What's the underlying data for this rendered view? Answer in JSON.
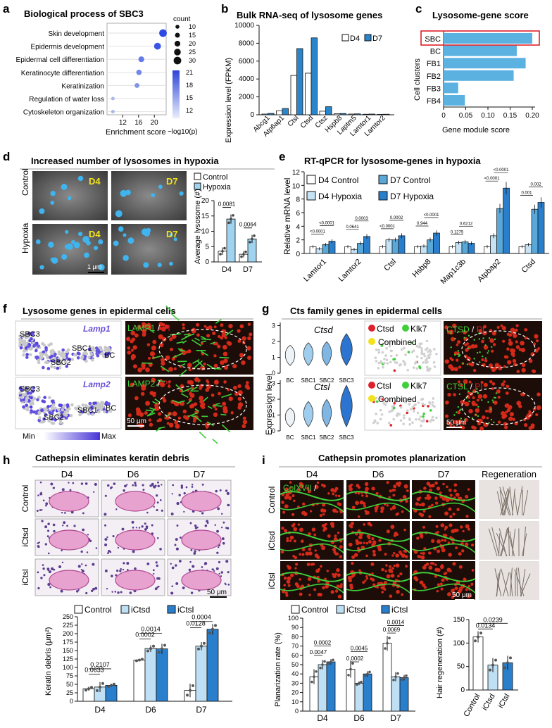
{
  "colors": {
    "light_blue": "#c6e3f5",
    "mid_blue": "#5bb1e0",
    "dark_blue": "#1f7dc7",
    "navy": "#1b3fb0",
    "highlight_red": "#e0202a",
    "microscopy_red": "#d42a1a",
    "microscopy_green": "#3ecf3a",
    "he_pink": "#e8a2cf"
  },
  "panels": {
    "a": {
      "letter": "a",
      "title": "Biological process of SBC3",
      "xlabel": "Enrichment score",
      "terms": [
        "Skin development",
        "Epidermis development",
        "Epidermal cell differentiation",
        "Keratinocyte differentiation",
        "Keratinization",
        "Regulation of water loss",
        "Cytoskeleton organization"
      ],
      "xticks": [
        "12",
        "16",
        "20"
      ],
      "legend_count_title": "count",
      "legend_counts": [
        "10",
        "15",
        "20",
        "25",
        "30"
      ],
      "legend_color_title": "−log10(p)",
      "legend_color_ticks": [
        "21",
        "18",
        "15",
        "12"
      ]
    },
    "b": {
      "letter": "b",
      "title": "Bulk RNA-seq of lysosome genes",
      "ylabel": "Expression level (FPKM)",
      "legend": [
        "D4",
        "D7"
      ]
    },
    "c": {
      "letter": "c",
      "title": "Lysosome-gene score",
      "ylabel": "Cell clusters",
      "xlabel": "Gene module score"
    },
    "d": {
      "letter": "d",
      "title": "Increased number of lysosomes in hypoxia",
      "row_labels": [
        "Control",
        "Hypoxia"
      ],
      "img_tags": [
        "D4",
        "D7",
        "D4",
        "D7"
      ],
      "scale": "1 μm",
      "legend": [
        "Control",
        "Hypoxia"
      ],
      "ylabel": "Average lysosome (#)",
      "groups": [
        "D4",
        "D7"
      ],
      "yticks": [
        "0",
        "5",
        "10",
        "15",
        "20"
      ],
      "pvals": [
        "0.0081",
        "0.0064"
      ]
    },
    "e": {
      "letter": "e",
      "title": "RT-qPCR for lysosome-genes in hypoxia",
      "ylabel": "Relative mRNA level",
      "legend": [
        "D4 Control",
        "D7 Control",
        "D4 Hypoxia",
        "D7 Hypoxia"
      ],
      "genes": [
        "Lamtor1",
        "Lamtor2",
        "Ctsl",
        "Hsbp8",
        "Map1c3b",
        "Atpbap2",
        "Ctsd"
      ],
      "yticks": [
        "0",
        "2",
        "4",
        "6",
        "8",
        "10",
        "12"
      ],
      "pvals_a": [
        "<0.0001",
        "0.0641",
        "<0.0001",
        "0.944",
        "0.1275",
        "<0.0001",
        "0.001"
      ],
      "pvals_b": [
        "<0.0001",
        "0.0003",
        "0.0002",
        "<0.0001",
        "0.6212",
        "<0.0001",
        "0.002"
      ]
    },
    "f": {
      "letter": "f",
      "title": "Lysosome genes in epidermal cells",
      "genes": [
        "Lamp1",
        "Lamp2"
      ],
      "cluster_labels": [
        "SBC3",
        "SBC1",
        "SBC2",
        "BC"
      ],
      "colorbar": [
        "Min",
        "Max"
      ],
      "stain_a": [
        "LAMP1",
        " / ",
        "PI"
      ],
      "stain_b": [
        "LAMP2",
        " / ",
        "PI"
      ],
      "scale": "50 μm"
    },
    "g": {
      "letter": "g",
      "title": "Cts family genes in epidermal cells",
      "genes": [
        "Ctsd",
        "Ctsl"
      ],
      "ylabel": "Expression level",
      "xcats": [
        "BC",
        "SBC1",
        "SBC2",
        "SBC3"
      ],
      "legend_a": [
        "Ctsd",
        "Klk7",
        "Combined"
      ],
      "legend_b": [
        "Ctsl",
        "Klk7",
        "Combined"
      ],
      "stain_a": [
        "CTSD",
        " / ",
        "PI"
      ],
      "stain_b": [
        "CTSL",
        " / ",
        "PI"
      ],
      "scale": "50 μm"
    },
    "h": {
      "letter": "h",
      "title": "Cathepsin eliminates keratin debris",
      "cols": [
        "D4",
        "D6",
        "D7"
      ],
      "rows": [
        "Control",
        "iCtsd",
        "iCtsl"
      ],
      "scale": "50 μm",
      "legend": [
        "Control",
        "iCtsd",
        "iCtsl"
      ],
      "ylabel": "Keratin debris (μm²)",
      "groups": [
        "D4",
        "D6",
        "D7"
      ],
      "yticks": [
        "0",
        "25",
        "50",
        "75",
        "100",
        "125",
        "150",
        "175",
        "200",
        "225",
        "250"
      ],
      "pvals": [
        "0.2107",
        "0.0633",
        "0.0014",
        "0.0002",
        "0.0004",
        "0.0128"
      ]
    },
    "i": {
      "letter": "i",
      "title": "Cathepsin promotes planarization",
      "cols": [
        "D4",
        "D6",
        "D7",
        "Regeneration"
      ],
      "rows": [
        "Control",
        "iCtsd",
        "iCtsl"
      ],
      "stain": [
        "ColXVII",
        " / "
      ],
      "scale": "50 μm",
      "legend": [
        "Control",
        "iCtsd",
        "iCtsl"
      ],
      "ylabel": "Planarization rate (%)",
      "groups": [
        "D4",
        "D6",
        "D7"
      ],
      "yticks": [
        "0",
        "10",
        "20",
        "30",
        "40",
        "50",
        "60",
        "70",
        "80",
        "90",
        "100"
      ],
      "pvals": [
        "0.0002",
        "0.0047",
        "0.0045",
        "0.0002",
        "0.0014",
        "0.0069"
      ],
      "ylabel2": "Hair regeneration (#)",
      "groups2": [
        "Control",
        "iCtsd",
        "iCtsl"
      ],
      "yticks2": [
        "0",
        "50",
        "100",
        "150"
      ],
      "pvals2": [
        "0.0239",
        "0.0134"
      ]
    }
  },
  "chart_data": [
    {
      "panel": "a",
      "type": "scatter",
      "title": "Biological process of SBC3",
      "xlabel": "Enrichment score",
      "xlim": [
        8,
        23
      ],
      "categories": [
        "Skin development",
        "Epidermis development",
        "Epidermal cell differentiation",
        "Keratinocyte differentiation",
        "Keratinization",
        "Regulation of water loss",
        "Cytoskeleton organization"
      ],
      "x": [
        22.2,
        20.8,
        16.7,
        16.1,
        15.6,
        9.5,
        9.5
      ],
      "count": [
        30,
        26,
        20,
        18,
        15,
        8,
        8
      ],
      "neglog10p": [
        21,
        20,
        17,
        16,
        15,
        12,
        12
      ]
    },
    {
      "panel": "b",
      "type": "bar",
      "title": "Bulk RNA-seq of lysosome genes",
      "ylabel": "Expression level (FPKM)",
      "ylim": [
        0,
        10000
      ],
      "yticks": [
        0,
        2000,
        4000,
        6000,
        8000,
        10000
      ],
      "categories": [
        "Abcg1",
        "Atp6ap1",
        "Ctsl",
        "Ctsd",
        "Ctsz",
        "Hspb8",
        "Laptm5",
        "Lamtor1",
        "Lamtor2"
      ],
      "series": [
        {
          "name": "D4",
          "values": [
            80,
            450,
            4400,
            4650,
            400,
            120,
            80,
            60,
            50
          ]
        },
        {
          "name": "D7",
          "values": [
            150,
            700,
            7400,
            8600,
            900,
            140,
            100,
            80,
            60
          ]
        }
      ]
    },
    {
      "panel": "c",
      "type": "bar",
      "orientation": "horizontal",
      "title": "Lysosome-gene score",
      "xlabel": "Gene module score",
      "ylabel": "Cell clusters",
      "xlim": [
        0,
        0.2
      ],
      "xticks": [
        0,
        0.05,
        0.1,
        0.15,
        0.2
      ],
      "categories": [
        "SBC",
        "BC",
        "FB1",
        "FB2",
        "FB3",
        "FB4"
      ],
      "values": [
        0.2,
        0.165,
        0.185,
        0.158,
        0.033,
        0.048
      ],
      "highlight": "SBC"
    },
    {
      "panel": "d",
      "type": "bar",
      "ylabel": "Average lysosome (#)",
      "ylim": [
        0,
        20
      ],
      "categories": [
        "D4",
        "D7"
      ],
      "series": [
        {
          "name": "Control",
          "values": [
            3.5,
            2.5
          ],
          "err": [
            1.2,
            1.0
          ]
        },
        {
          "name": "Hypoxia",
          "values": [
            14,
            7.5
          ],
          "err": [
            1.5,
            1.3
          ]
        }
      ],
      "pvals": [
        "0.0081",
        "0.0064"
      ]
    },
    {
      "panel": "e",
      "type": "bar",
      "title": "RT-qPCR for lysosome-genes in hypoxia",
      "ylabel": "Relative mRNA level",
      "ylim": [
        0,
        12
      ],
      "categories": [
        "Lamtor1",
        "Lamtor2",
        "Ctsl",
        "Hsbp8",
        "Map1c3b",
        "Atpbap2",
        "Ctsd"
      ],
      "series": [
        {
          "name": "D4 Control",
          "values": [
            1.0,
            1.0,
            1.0,
            1.0,
            1.0,
            1.0,
            1.0
          ]
        },
        {
          "name": "D4 Hypoxia",
          "values": [
            0.7,
            0.6,
            2.0,
            1.1,
            1.6,
            2.6,
            1.3
          ]
        },
        {
          "name": "D7 Control",
          "values": [
            1.3,
            1.5,
            2.0,
            2.0,
            1.7,
            6.6,
            6.5
          ]
        },
        {
          "name": "D7 Hypoxia",
          "values": [
            1.8,
            2.5,
            2.6,
            3.0,
            1.5,
            9.6,
            7.5
          ]
        }
      ],
      "pvals": [
        [
          "<0.0001",
          "<0.0001"
        ],
        [
          "0.0641",
          "0.0003"
        ],
        [
          "<0.0001",
          "0.0002"
        ],
        [
          "0.944",
          "<0.0001"
        ],
        [
          "0.1275",
          "0.6212"
        ],
        [
          "<0.0001",
          "<0.0001"
        ],
        [
          "0.001",
          "0.002"
        ]
      ]
    },
    {
      "panel": "h",
      "type": "bar",
      "ylabel": "Keratin debris (μm²)",
      "ylim": [
        0,
        250
      ],
      "categories": [
        "D4",
        "D6",
        "D7"
      ],
      "series": [
        {
          "name": "Control",
          "values": [
            37,
            122,
            32
          ],
          "err": [
            6,
            3,
            20
          ]
        },
        {
          "name": "iCtsd",
          "values": [
            42,
            156,
            163
          ],
          "err": [
            15,
            10,
            12
          ]
        },
        {
          "name": "iCtsl",
          "values": [
            47,
            155,
            213
          ],
          "err": [
            5,
            15,
            16
          ]
        }
      ],
      "pvals": [
        "0.2107",
        "0.0633",
        "0.0014",
        "0.0002",
        "0.0004",
        "0.0128"
      ]
    },
    {
      "panel": "i",
      "type": "bar",
      "ylabel": "Planarization rate (%)",
      "ylim": [
        0,
        100
      ],
      "categories": [
        "D4",
        "D6",
        "D7"
      ],
      "series": [
        {
          "name": "Control",
          "values": [
            37,
            45,
            73
          ],
          "err": [
            8,
            9,
            8
          ]
        },
        {
          "name": "iCtsd",
          "values": [
            50,
            30,
            37
          ],
          "err": [
            5,
            2,
            5
          ]
        },
        {
          "name": "iCtsl",
          "values": [
            53,
            40,
            36
          ],
          "err": [
            3,
            3,
            3
          ]
        }
      ],
      "pvals": [
        "0.0002",
        "0.0047",
        "0.0045",
        "0.0002",
        "0.0014",
        "0.0069"
      ]
    },
    {
      "panel": "i-right",
      "type": "bar",
      "ylabel": "Hair regeneration (#)",
      "ylim": [
        0,
        150
      ],
      "categories": [
        "Control",
        "iCtsd",
        "iCtsl"
      ],
      "values": [
        113,
        53,
        58
      ],
      "err": [
        12,
        15,
        15
      ],
      "pvals": [
        "0.0239",
        "0.0134"
      ]
    }
  ]
}
